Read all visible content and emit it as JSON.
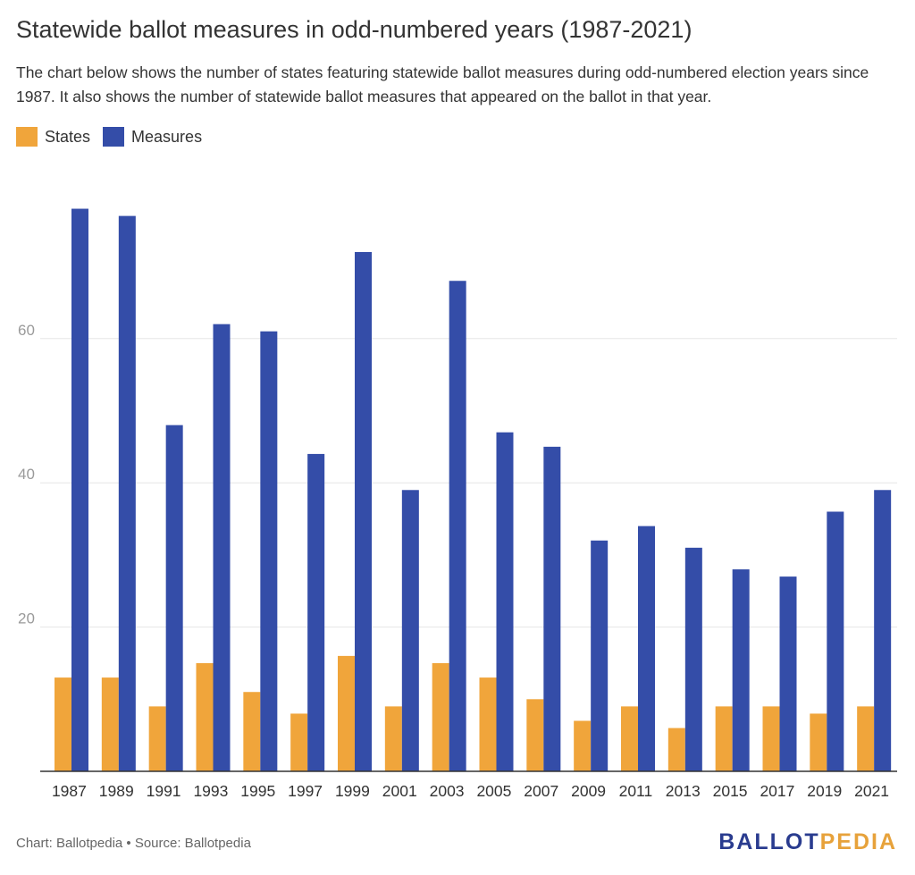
{
  "header": {
    "title": "Statewide ballot measures in odd-numbered years (1987-2021)",
    "subtitle": "The chart below shows the number of states featuring statewide ballot measures during odd-numbered election years since 1987. It also shows the number of statewide ballot measures that appeared on the ballot in that year."
  },
  "footer": {
    "credit": "Chart: Ballotpedia • Source: Ballotpedia",
    "logo_ballot": "BALLOT",
    "logo_pedia": "PEDIA"
  },
  "colors": {
    "states": "#f0a53b",
    "measures": "#344da8",
    "grid": "#e6e6e6",
    "axis": "#333333",
    "tick": "#9a9a9a"
  },
  "chart_data": {
    "type": "bar",
    "categories": [
      "1987",
      "1989",
      "1991",
      "1993",
      "1995",
      "1997",
      "1999",
      "2001",
      "2003",
      "2005",
      "2007",
      "2009",
      "2011",
      "2013",
      "2015",
      "2017",
      "2019",
      "2021"
    ],
    "series": [
      {
        "name": "States",
        "values": [
          13,
          13,
          9,
          15,
          11,
          8,
          16,
          9,
          15,
          13,
          10,
          7,
          9,
          6,
          9,
          9,
          8,
          9
        ]
      },
      {
        "name": "Measures",
        "values": [
          78,
          77,
          48,
          62,
          61,
          44,
          72,
          39,
          68,
          47,
          45,
          32,
          34,
          31,
          28,
          27,
          36,
          39
        ]
      }
    ],
    "y_ticks": [
      20,
      40,
      60
    ],
    "ylim": [
      0,
      80
    ],
    "grid": true,
    "legend_position": "top-left"
  }
}
